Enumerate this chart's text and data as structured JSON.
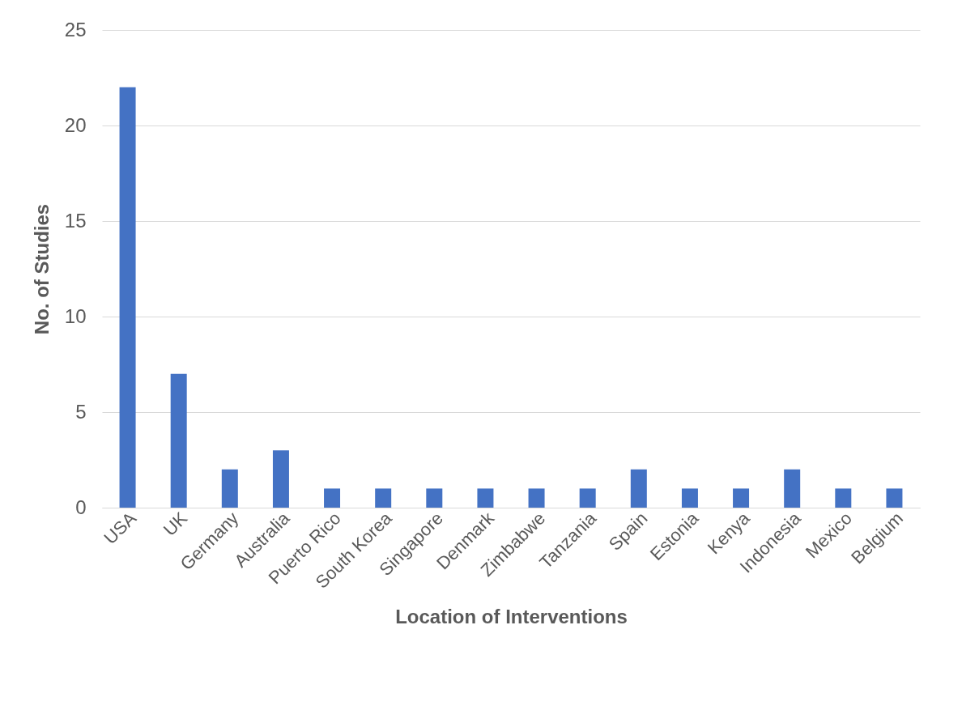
{
  "chart_data": {
    "type": "bar",
    "xlabel": "Location of Interventions",
    "ylabel": "No. of Studies",
    "categories": [
      "USA",
      "UK",
      "Germany",
      "Australia",
      "Puerto Rico",
      "South Korea",
      "Singapore",
      "Denmark",
      "Zimbabwe",
      "Tanzania",
      "Spain",
      "Estonia",
      "Kenya",
      "Indonesia",
      "Mexico",
      "Belgium"
    ],
    "values": [
      22,
      7,
      2,
      3,
      1,
      1,
      1,
      1,
      1,
      1,
      2,
      1,
      1,
      2,
      1,
      1
    ],
    "color": "#4472c4",
    "ylim": [
      0,
      25
    ],
    "yticks": [
      0,
      5,
      10,
      15,
      20,
      25
    ],
    "grid": "y"
  }
}
